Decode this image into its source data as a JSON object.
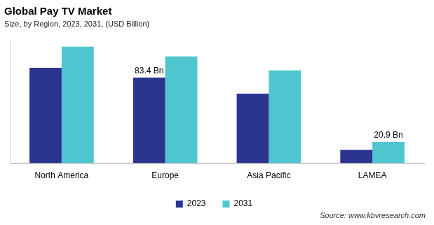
{
  "chart_data": {
    "type": "bar",
    "title": "Global Pay TV Market",
    "subtitle": "Size, by Region, 2023, 2031, (USD Billion)",
    "categories": [
      "North America",
      "Europe",
      "Asia Pacific",
      "LAMEA"
    ],
    "series": [
      {
        "name": "2023",
        "color": "#2b3590",
        "values": [
          93.0,
          83.4,
          67.7,
          13.0
        ],
        "value_labels": [
          null,
          "83.4 Bn",
          null,
          null
        ]
      },
      {
        "name": "2031",
        "color": "#4fc5d0",
        "values": [
          113.5,
          104.0,
          90.3,
          20.9
        ],
        "value_labels": [
          null,
          null,
          null,
          "20.9 Bn"
        ]
      }
    ],
    "ylim": [
      0,
      120
    ],
    "grid": false,
    "legend": "bottom",
    "tick_labels": "x",
    "source": "Source: www.kbvresearch.com"
  }
}
